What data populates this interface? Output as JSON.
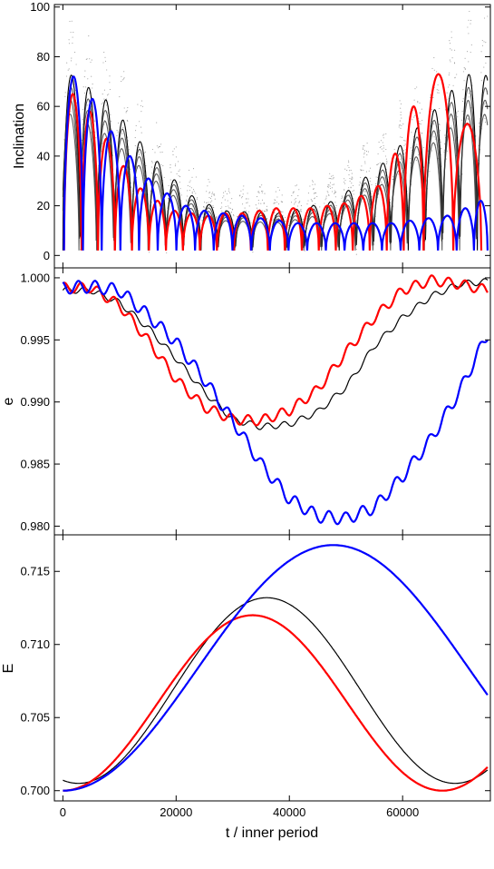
{
  "chart_data": [
    {
      "type": "line",
      "ylabel": "Inclination",
      "xlim": [
        -1500,
        75500
      ],
      "ylim": [
        -5,
        101
      ],
      "yticks": [
        0,
        20,
        40,
        60,
        80,
        100
      ],
      "series": [
        {
          "color": "#000000",
          "kind": "dense-oscillation",
          "period": 3050,
          "envelope": [
            [
              0,
              75
            ],
            [
              8000,
              62
            ],
            [
              15000,
              42
            ],
            [
              22000,
              25
            ],
            [
              28000,
              18
            ],
            [
              38000,
              17
            ],
            [
              48000,
              22
            ],
            [
              56000,
              36
            ],
            [
              62000,
              50
            ],
            [
              67000,
              62
            ],
            [
              70000,
              70
            ],
            [
              73000,
              75
            ],
            [
              75000,
              72
            ]
          ]
        },
        {
          "color": "#ff0000",
          "kind": "arches",
          "peaks": [
            [
              1900,
              65
            ],
            [
              4700,
              58
            ],
            [
              7700,
              47
            ],
            [
              10700,
              36
            ],
            [
              13700,
              27
            ],
            [
              16700,
              22
            ],
            [
              19700,
              18
            ],
            [
              22700,
              17
            ],
            [
              25700,
              16
            ],
            [
              28700,
              17
            ],
            [
              31700,
              17
            ],
            [
              34700,
              18
            ],
            [
              37700,
              19
            ],
            [
              40700,
              19
            ],
            [
              43700,
              19
            ],
            [
              46700,
              20
            ],
            [
              49700,
              21
            ],
            [
              52700,
              24
            ],
            [
              55700,
              28
            ],
            [
              58700,
              41
            ],
            [
              61700,
              60
            ],
            [
              65700,
              73
            ],
            [
              72200,
              53
            ]
          ]
        },
        {
          "color": "#0000ff",
          "kind": "arches",
          "peaks": [
            [
              1900,
              72
            ],
            [
              5200,
              63
            ],
            [
              8500,
              50
            ],
            [
              11800,
              40
            ],
            [
              15100,
              31
            ],
            [
              18400,
              25
            ],
            [
              21700,
              20
            ],
            [
              25000,
              18
            ],
            [
              28300,
              17
            ],
            [
              31600,
              16
            ],
            [
              34900,
              15
            ],
            [
              38200,
              14
            ],
            [
              41500,
              13
            ],
            [
              44800,
              13
            ],
            [
              48100,
              13
            ],
            [
              51400,
              13
            ],
            [
              54700,
              13
            ],
            [
              58000,
              13
            ],
            [
              61300,
              14
            ],
            [
              64600,
              15
            ],
            [
              67900,
              16
            ],
            [
              71200,
              19
            ],
            [
              74000,
              22
            ]
          ]
        }
      ]
    },
    {
      "type": "line",
      "ylabel": "e",
      "xlim": [
        -1500,
        75500
      ],
      "ylim": [
        0.9793,
        1.0008
      ],
      "yticks": [
        0.98,
        0.985,
        0.99,
        0.995,
        1.0
      ],
      "ytick_labels": [
        "0.980",
        "0.985",
        "0.990",
        "0.995",
        "1.000"
      ],
      "series": [
        {
          "color": "#000000",
          "points": [
            [
              0,
              0.999
            ],
            [
              5000,
              0.999
            ],
            [
              10000,
              0.998
            ],
            [
              15000,
              0.996
            ],
            [
              20000,
              0.9935
            ],
            [
              25000,
              0.9908
            ],
            [
              30000,
              0.9886
            ],
            [
              35000,
              0.988
            ],
            [
              40000,
              0.9882
            ],
            [
              45000,
              0.9892
            ],
            [
              50000,
              0.9912
            ],
            [
              55000,
              0.9945
            ],
            [
              60000,
              0.9968
            ],
            [
              65000,
              0.9985
            ],
            [
              70000,
              0.9995
            ],
            [
              75000,
              0.9997
            ]
          ],
          "wiggle_amp": 0.00025
        },
        {
          "color": "#ff0000",
          "points": [
            [
              0,
              0.9992
            ],
            [
              5000,
              0.9992
            ],
            [
              10000,
              0.9978
            ],
            [
              15000,
              0.995
            ],
            [
              20000,
              0.9918
            ],
            [
              25000,
              0.9896
            ],
            [
              30000,
              0.9886
            ],
            [
              35000,
              0.9885
            ],
            [
              40000,
              0.9893
            ],
            [
              45000,
              0.991
            ],
            [
              50000,
              0.994
            ],
            [
              55000,
              0.9968
            ],
            [
              60000,
              0.999
            ],
            [
              65000,
              0.9998
            ],
            [
              70000,
              0.9995
            ],
            [
              75000,
              0.999
            ]
          ],
          "wiggle_amp": 0.0004
        },
        {
          "color": "#0000ff",
          "points": [
            [
              0,
              0.9992
            ],
            [
              5000,
              0.9993
            ],
            [
              10000,
              0.999
            ],
            [
              15000,
              0.997
            ],
            [
              20000,
              0.9948
            ],
            [
              25000,
              0.9918
            ],
            [
              30000,
              0.9885
            ],
            [
              35000,
              0.985
            ],
            [
              40000,
              0.9822
            ],
            [
              45000,
              0.9808
            ],
            [
              50000,
              0.9806
            ],
            [
              55000,
              0.9815
            ],
            [
              60000,
              0.984
            ],
            [
              65000,
              0.987
            ],
            [
              70000,
              0.9908
            ],
            [
              75000,
              0.9955
            ]
          ],
          "wiggle_amp": 0.0005
        }
      ]
    },
    {
      "type": "line",
      "ylabel": "E",
      "xlabel": "t / inner period",
      "xlim": [
        -1500,
        75500
      ],
      "ylim": [
        0.6993,
        0.7175
      ],
      "xticks": [
        0,
        20000,
        40000,
        60000
      ],
      "yticks": [
        0.7,
        0.705,
        0.71,
        0.715
      ],
      "ytick_labels": [
        "0.700",
        "0.705",
        "0.710",
        "0.715"
      ],
      "series": [
        {
          "color": "#000000",
          "mean": 0.70685,
          "amp": 0.00635,
          "period": 66500,
          "phase_peak": 36000
        },
        {
          "color": "#ff0000",
          "mean": 0.706,
          "amp": 0.006,
          "period": 67000,
          "phase_peak": 33500
        },
        {
          "color": "#0000ff",
          "mean": 0.7084,
          "amp": 0.0084,
          "period": 95500,
          "phase_peak": 47750
        }
      ]
    }
  ]
}
